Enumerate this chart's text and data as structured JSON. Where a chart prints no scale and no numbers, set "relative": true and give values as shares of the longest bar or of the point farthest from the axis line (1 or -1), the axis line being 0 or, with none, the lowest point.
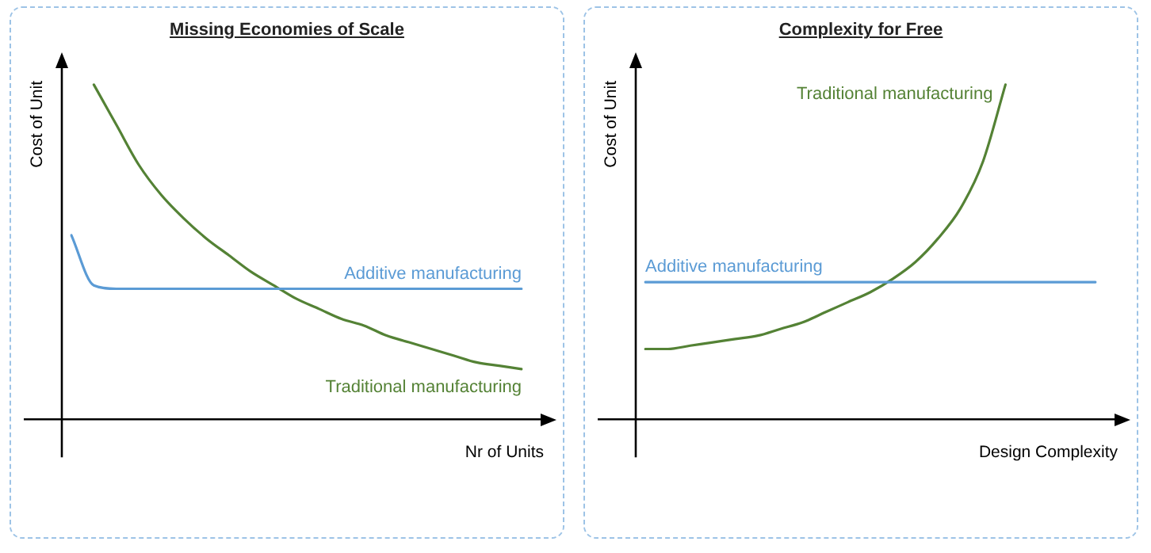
{
  "chart_data": [
    {
      "type": "line",
      "title": "Missing Economies of Scale",
      "xlabel": "Nr of Units",
      "ylabel": "Cost of Unit",
      "relative": true,
      "legend": false,
      "marker": "none",
      "categories": [
        null,
        null,
        null,
        null,
        null,
        null,
        null,
        null,
        null,
        null,
        null,
        null,
        null,
        null,
        null,
        null,
        null,
        null,
        null,
        null,
        null
      ],
      "series": [
        {
          "name": "Additive manufacturing",
          "color": "#5b9bd5",
          "values": [
            0.55,
            0.4,
            0.39,
            0.39,
            0.39,
            0.39,
            0.39,
            0.39,
            0.39,
            0.39,
            0.39,
            0.39,
            0.39,
            0.39,
            0.39,
            0.39,
            0.39,
            0.39,
            0.39,
            0.39,
            0.39
          ]
        },
        {
          "name": "Traditional manufacturing",
          "color": "#548235",
          "values": [
            null,
            1.0,
            0.88,
            0.76,
            0.67,
            0.6,
            0.54,
            0.49,
            0.44,
            0.4,
            0.36,
            0.33,
            0.3,
            0.28,
            0.25,
            0.23,
            0.21,
            0.19,
            0.17,
            0.16,
            0.15
          ]
        }
      ]
    },
    {
      "type": "line",
      "title": "Complexity for Free",
      "xlabel": "Design Complexity",
      "ylabel": "Cost of Unit",
      "relative": true,
      "legend": false,
      "marker": "none",
      "categories": [
        null,
        null,
        null,
        null,
        null,
        null,
        null,
        null,
        null,
        null,
        null,
        null,
        null,
        null,
        null,
        null,
        null,
        null,
        null,
        null,
        null
      ],
      "series": [
        {
          "name": "Additive manufacturing",
          "color": "#5b9bd5",
          "values": [
            0.41,
            0.41,
            0.41,
            0.41,
            0.41,
            0.41,
            0.41,
            0.41,
            0.41,
            0.41,
            0.41,
            0.41,
            0.41,
            0.41,
            0.41,
            0.41,
            0.41,
            0.41,
            0.41,
            0.41,
            0.41
          ]
        },
        {
          "name": "Traditional manufacturing",
          "color": "#548235",
          "values": [
            0.21,
            0.21,
            0.22,
            0.23,
            0.24,
            0.25,
            0.27,
            0.29,
            0.32,
            0.35,
            0.38,
            0.42,
            0.47,
            0.54,
            0.63,
            0.77,
            1.0,
            null,
            null,
            null,
            null
          ]
        }
      ]
    }
  ]
}
